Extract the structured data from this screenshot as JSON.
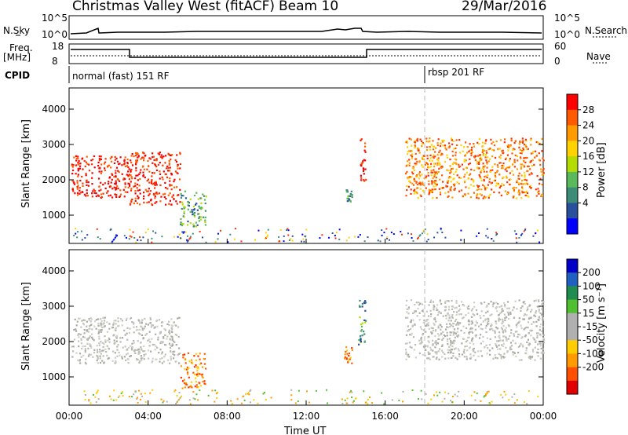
{
  "header": {
    "station": "Christmas Valley West (fitACF)",
    "beam": "Beam 10",
    "date": "29/Mar/2016"
  },
  "top_panels": {
    "nsky_label": "N.Sky",
    "nsearch_label": "N.Search",
    "nsky_ticks": [
      "10^5",
      "10^0"
    ],
    "freq_label": "Freq.",
    "freq_unit": "[MHz]",
    "freq_ticks": [
      "18",
      "8"
    ],
    "nave_label": "Nave",
    "nave_ticks": [
      "60",
      "0"
    ],
    "cpid_label": "CPID",
    "cpid_left": "normal (fast) 151 RF",
    "cpid_right": "rbsp 201 RF"
  },
  "power_colorbar": {
    "label": "Power [dB]",
    "ticks": [
      "28",
      "24",
      "20",
      "16",
      "12",
      "8",
      "4"
    ],
    "colors": [
      "#ff0000",
      "#ff5a00",
      "#ff9a00",
      "#ffd200",
      "#b4dc00",
      "#5ab95a",
      "#3c8c78",
      "#28509c",
      "#0000ff"
    ]
  },
  "velocity_colorbar": {
    "label": "Velocity [m s⁻¹]",
    "ticks": [
      "200",
      "100",
      "50",
      "15",
      "-15",
      "-50",
      "-100",
      "-200"
    ],
    "colors": [
      "#0000c8",
      "#2060c0",
      "#208c50",
      "#50c030",
      "#b0b0b0",
      "#b0b0b0",
      "#ffcc00",
      "#ff9a00",
      "#ff5000",
      "#e00000"
    ]
  },
  "chart_data": [
    {
      "type": "heatmap",
      "panel": "power",
      "ylabel": "Slant Range [km]",
      "y_ticks": [
        1000,
        2000,
        3000,
        4000
      ],
      "ylim": [
        200,
        4600
      ],
      "xlim": [
        "00:00",
        "24:00"
      ],
      "x_ticks": [
        "00:00",
        "04:00",
        "08:00",
        "12:00",
        "16:00",
        "20:00",
        "00:00"
      ],
      "regions": [
        {
          "t": [
            0.1,
            3.0
          ],
          "r": [
            1500,
            2700
          ],
          "level": "red"
        },
        {
          "t": [
            3.0,
            5.6
          ],
          "r": [
            1300,
            2800
          ],
          "level": "red"
        },
        {
          "t": [
            5.6,
            6.9
          ],
          "r": [
            700,
            1700
          ],
          "level": "green"
        },
        {
          "t": [
            14.0,
            14.3
          ],
          "r": [
            1400,
            1800
          ],
          "level": "green"
        },
        {
          "t": [
            14.7,
            15.0
          ],
          "r": [
            1900,
            3200
          ],
          "level": "red"
        },
        {
          "t": [
            17.0,
            24.0
          ],
          "r": [
            1500,
            3200
          ],
          "level": "orange"
        }
      ]
    },
    {
      "type": "heatmap",
      "panel": "velocity",
      "ylabel": "Slant Range [km]",
      "xlabel": "Time UT",
      "y_ticks": [
        1000,
        2000,
        3000,
        4000
      ],
      "ylim": [
        200,
        4600
      ],
      "xlim": [
        "00:00",
        "24:00"
      ],
      "x_ticks": [
        "00:00",
        "04:00",
        "08:00",
        "12:00",
        "16:00",
        "20:00",
        "00:00"
      ],
      "regions": [
        {
          "t": [
            0.1,
            5.6
          ],
          "r": [
            1400,
            2700
          ],
          "level": "grey"
        },
        {
          "t": [
            5.6,
            6.9
          ],
          "r": [
            700,
            1700
          ],
          "level": "orange"
        },
        {
          "t": [
            13.9,
            14.3
          ],
          "r": [
            1400,
            1900
          ],
          "level": "orange"
        },
        {
          "t": [
            14.6,
            15.0
          ],
          "r": [
            1900,
            3200
          ],
          "level": "green"
        },
        {
          "t": [
            17.0,
            24.0
          ],
          "r": [
            1500,
            3200
          ],
          "level": "grey"
        }
      ]
    }
  ]
}
